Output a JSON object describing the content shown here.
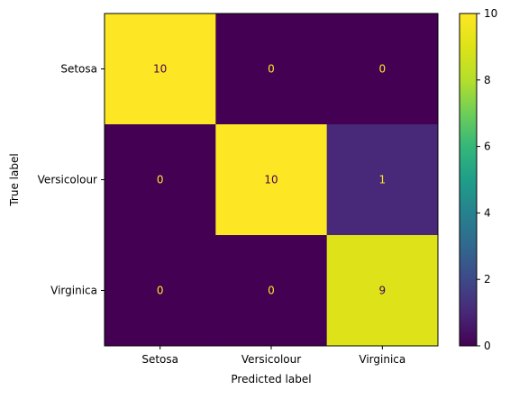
{
  "chart_data": {
    "type": "heatmap",
    "title": "",
    "xlabel": "Predicted label",
    "ylabel": "True label",
    "x_categories": [
      "Setosa",
      "Versicolour",
      "Virginica"
    ],
    "y_categories": [
      "Setosa",
      "Versicolour",
      "Virginica"
    ],
    "values": [
      [
        10,
        0,
        0
      ],
      [
        0,
        10,
        1
      ],
      [
        0,
        0,
        9
      ]
    ],
    "color_range": [
      0,
      10
    ],
    "colormap": "viridis",
    "colorbar_ticks": [
      0,
      2,
      4,
      6,
      8,
      10
    ],
    "grid": false
  }
}
